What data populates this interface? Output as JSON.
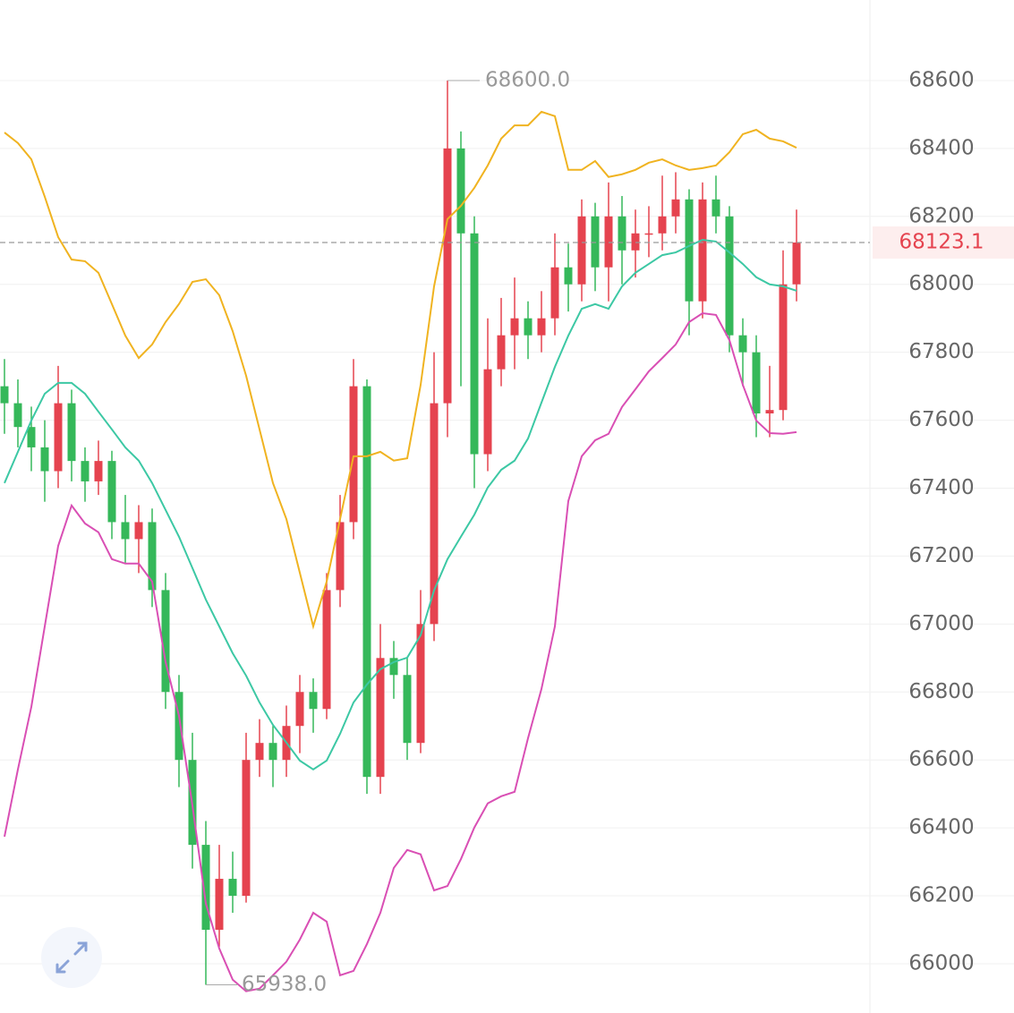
{
  "chart_data": {
    "type": "candlestick",
    "ylim": [
      65855,
      68837
    ],
    "yticks": [
      66000,
      66200,
      66400,
      66600,
      66800,
      67000,
      67200,
      67400,
      67600,
      67800,
      68000,
      68200,
      68400,
      68600
    ],
    "grid": true,
    "up_color": "#e5434f",
    "down_color": "#35b85a",
    "open": [
      67700,
      67650,
      67580,
      67520,
      67450,
      67650,
      67480,
      67420,
      67480,
      67300,
      67250,
      67300,
      67100,
      66800,
      66600,
      66350,
      66100,
      66250,
      66200,
      66600,
      66650,
      66600,
      66700,
      66800,
      66750,
      67100,
      67300,
      67700,
      66550,
      66900,
      66850,
      66650,
      67000,
      67650,
      68400,
      68150,
      67500,
      67750,
      67850,
      67900,
      67850,
      67900,
      68050,
      68000,
      68200,
      68050,
      68200,
      68100,
      68150,
      68150,
      68200,
      68250,
      67950,
      68250,
      68200,
      67850,
      67800,
      67620,
      67630,
      68000
    ],
    "high": [
      67780,
      67720,
      67640,
      67600,
      67760,
      67690,
      67520,
      67540,
      67510,
      67380,
      67350,
      67340,
      67150,
      66850,
      66680,
      66420,
      66350,
      66330,
      66680,
      66720,
      66700,
      66760,
      66850,
      66840,
      67150,
      67380,
      67780,
      67720,
      67000,
      66950,
      66900,
      67100,
      67800,
      68600,
      68450,
      68200,
      67900,
      67960,
      68020,
      67950,
      67980,
      68150,
      68120,
      68250,
      68240,
      68300,
      68260,
      68220,
      68230,
      68320,
      68330,
      68280,
      68300,
      68320,
      68230,
      67900,
      67850,
      67760,
      68100,
      68220
    ],
    "low": [
      67560,
      67520,
      67450,
      67360,
      67400,
      67420,
      67360,
      67380,
      67250,
      67180,
      67150,
      67050,
      66750,
      66520,
      66280,
      65938,
      66050,
      66150,
      66180,
      66550,
      66520,
      66550,
      66620,
      66680,
      66720,
      67050,
      67250,
      66500,
      66500,
      66780,
      66600,
      66620,
      66950,
      67550,
      67700,
      67400,
      67450,
      67700,
      67750,
      67780,
      67800,
      67850,
      67920,
      67950,
      67980,
      67950,
      68000,
      68020,
      68080,
      68100,
      68150,
      67850,
      67900,
      68150,
      67800,
      67700,
      67550,
      67550,
      67600,
      67950
    ],
    "close": [
      67650,
      67580,
      67520,
      67450,
      67650,
      67480,
      67420,
      67480,
      67300,
      67250,
      67300,
      67100,
      66800,
      66600,
      66350,
      66100,
      66250,
      66200,
      66600,
      66650,
      66600,
      66700,
      66800,
      66750,
      67100,
      67300,
      67700,
      66550,
      66900,
      66850,
      66650,
      67000,
      67650,
      68400,
      68150,
      67500,
      67750,
      67850,
      67900,
      67850,
      67900,
      68050,
      68000,
      68200,
      68050,
      68200,
      68100,
      68150,
      68150,
      68200,
      68250,
      67950,
      68250,
      68200,
      67850,
      67800,
      67620,
      67630,
      68000,
      68123.1
    ],
    "series": [
      {
        "color": "#f0b320",
        "values": [
          68447,
          68416,
          68368,
          68258,
          68139,
          68073,
          68068,
          68034,
          67942,
          67849,
          67783,
          67823,
          67889,
          67942,
          68007,
          68015,
          67968,
          67862,
          67731,
          67573,
          67415,
          67309,
          67151,
          66993,
          67125,
          67309,
          67494,
          67494,
          67507,
          67481,
          67488,
          67704,
          67994,
          68192,
          68231,
          68284,
          68350,
          68429,
          68468,
          68468,
          68508,
          68495,
          68337,
          68337,
          68363,
          68316,
          68324,
          68337,
          68358,
          68368,
          68350,
          68337,
          68342,
          68350,
          68389,
          68442,
          68455,
          68429,
          68421,
          68402
        ]
      },
      {
        "color": "#3cc8a4",
        "values": [
          67415,
          67507,
          67599,
          67678,
          67710,
          67710,
          67678,
          67625,
          67573,
          67520,
          67481,
          67415,
          67336,
          67257,
          67165,
          67072,
          66993,
          66914,
          66848,
          66769,
          66703,
          66651,
          66598,
          66572,
          66598,
          66677,
          66769,
          66822,
          66867,
          66888,
          66901,
          66967,
          67099,
          67191,
          67257,
          67322,
          67402,
          67454,
          67481,
          67546,
          67652,
          67757,
          67849,
          67928,
          67942,
          67928,
          67994,
          68034,
          68060,
          68086,
          68094,
          68113,
          68131,
          68126,
          68094,
          68060,
          68021,
          68000,
          67994,
          67981
        ]
      },
      {
        "color": "#d94fb4",
        "values": [
          66374,
          66572,
          66756,
          66993,
          67230,
          67349,
          67296,
          67270,
          67191,
          67178,
          67178,
          67125,
          66888,
          66730,
          66466,
          66177,
          66045,
          65953,
          65919,
          65927,
          65966,
          66006,
          66071,
          66150,
          66124,
          65966,
          65979,
          66058,
          66150,
          66282,
          66335,
          66322,
          66216,
          66229,
          66308,
          66401,
          66472,
          66493,
          66506,
          66664,
          66809,
          66993,
          67362,
          67494,
          67541,
          67560,
          67639,
          67691,
          67744,
          67783,
          67823,
          67889,
          67915,
          67910,
          67836,
          67704,
          67599,
          67562,
          67560,
          67565
        ]
      }
    ],
    "high_annotation": {
      "value": 68600,
      "label": "68600.0"
    },
    "low_annotation": {
      "value": 65938,
      "label": "65938.0"
    },
    "last_price": 68123.1
  }
}
